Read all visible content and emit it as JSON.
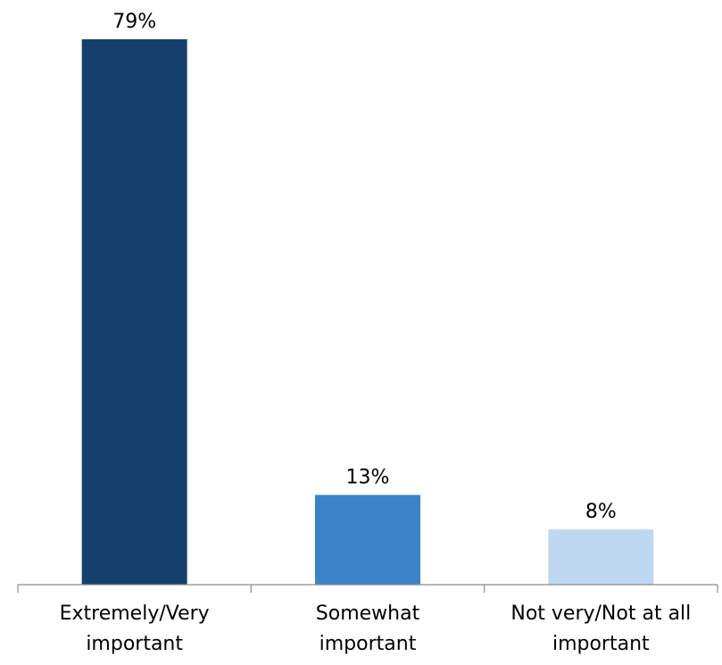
{
  "chart_data": {
    "type": "bar",
    "title": "",
    "xlabel": "",
    "ylabel": "",
    "categories": [
      [
        "Extremely/Very",
        "important"
      ],
      [
        "Somewhat",
        "important"
      ],
      [
        "Not very/Not at all",
        "important"
      ]
    ],
    "values": [
      79,
      13,
      8
    ],
    "value_labels": [
      "79%",
      "13%",
      "8%"
    ],
    "unit": "%",
    "colors": [
      "#14406e",
      "#3a84c7",
      "#bfd8f2"
    ],
    "ylim": [
      0,
      79
    ],
    "grid": false,
    "legend": "none"
  }
}
